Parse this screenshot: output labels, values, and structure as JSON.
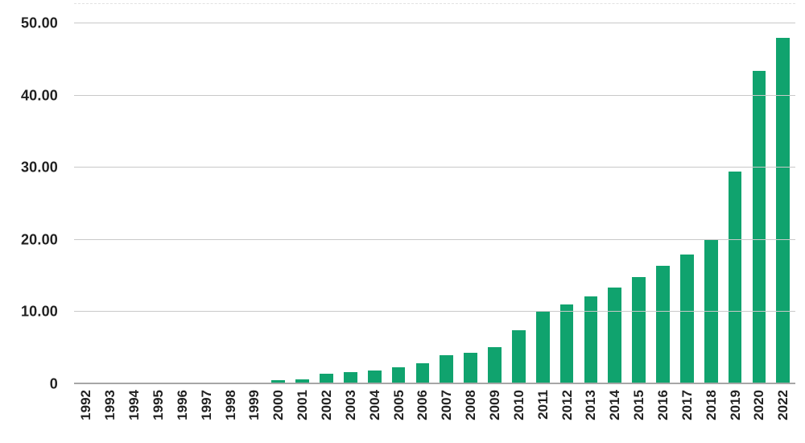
{
  "page": {
    "background_color": "#ffffff"
  },
  "chart_data": {
    "type": "bar",
    "title": "",
    "xlabel": "",
    "ylabel": "",
    "categories": [
      "1992",
      "1993",
      "1994",
      "1995",
      "1996",
      "1997",
      "1998",
      "1999",
      "2000",
      "2001",
      "2002",
      "2003",
      "2004",
      "2005",
      "2006",
      "2007",
      "2008",
      "2009",
      "2010",
      "2011",
      "2012",
      "2013",
      "2014",
      "2015",
      "2016",
      "2017",
      "2018",
      "2019",
      "2020",
      "2022"
    ],
    "values": [
      0,
      0,
      0,
      0,
      0,
      0,
      0,
      0.2,
      0.55,
      0.7,
      1.5,
      1.7,
      1.95,
      2.4,
      2.9,
      4.0,
      4.4,
      5.1,
      7.5,
      10.1,
      11.1,
      12.2,
      13.35,
      14.8,
      16.4,
      18.0,
      20.0,
      29.5,
      43.4,
      48.0
    ],
    "ylim": [
      0,
      50
    ],
    "yticks": [
      0,
      10,
      20,
      30,
      40,
      50
    ],
    "ytick_labels": [
      "0",
      "10.00",
      "20.00",
      "30.00",
      "40.00",
      "50.00"
    ],
    "grid": true,
    "legend": false,
    "style": {
      "bar_color": "#10a36e",
      "gridline_color": "#c9c9c9",
      "baseline_color": "#a6a6a6",
      "label_color": "#212121"
    }
  }
}
